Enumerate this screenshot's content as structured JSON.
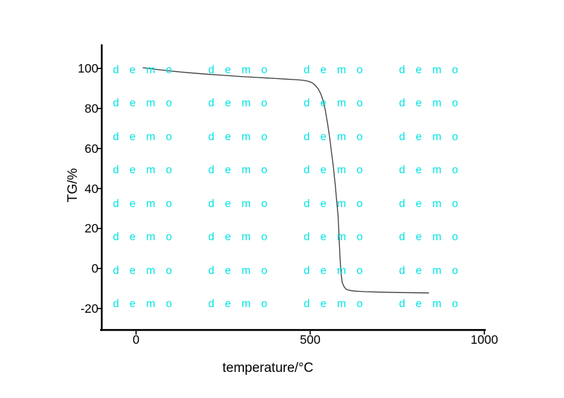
{
  "page": {
    "background": "#ffffff",
    "axis_color": "#000000"
  },
  "watermark": {
    "text": "demo",
    "color": "#00e3e3",
    "columns": 4,
    "rows": 8
  },
  "chart_data": {
    "type": "line",
    "title": "",
    "xlabel": "temperature/°C",
    "ylabel": "TG/%",
    "x_ticks": [
      0,
      500,
      1000
    ],
    "y_ticks": [
      100,
      80,
      60,
      40,
      20,
      0,
      -20
    ],
    "xlim": [
      -100,
      1000
    ],
    "ylim": [
      -31,
      113
    ],
    "grid": false,
    "legend": null,
    "series": [
      {
        "name": "TG",
        "color": "#3a3a3a",
        "points": [
          [
            20,
            100.4
          ],
          [
            60,
            99.5
          ],
          [
            100,
            98.7
          ],
          [
            150,
            97.9
          ],
          [
            200,
            97.2
          ],
          [
            250,
            96.6
          ],
          [
            300,
            96.0
          ],
          [
            350,
            95.5
          ],
          [
            400,
            95.0
          ],
          [
            430,
            94.7
          ],
          [
            460,
            94.4
          ],
          [
            480,
            94.1
          ],
          [
            495,
            93.6
          ],
          [
            506,
            92.8
          ],
          [
            515,
            91.5
          ],
          [
            523,
            89.8
          ],
          [
            530,
            87.5
          ],
          [
            537,
            84.0
          ],
          [
            543,
            79.5
          ],
          [
            549,
            73.5
          ],
          [
            555,
            66.5
          ],
          [
            561,
            58.5
          ],
          [
            567,
            50.0
          ],
          [
            572,
            41.5
          ],
          [
            576,
            34.0
          ],
          [
            580,
            26.5
          ],
          [
            582,
            19.5
          ],
          [
            584,
            11.0
          ],
          [
            586,
            4.0
          ],
          [
            589,
            -3.0
          ],
          [
            592,
            -7.0
          ],
          [
            597,
            -9.0
          ],
          [
            603,
            -10.3
          ],
          [
            612,
            -10.9
          ],
          [
            630,
            -11.3
          ],
          [
            660,
            -11.6
          ],
          [
            700,
            -11.8
          ],
          [
            760,
            -12.0
          ],
          [
            840,
            -12.2
          ]
        ]
      }
    ]
  }
}
